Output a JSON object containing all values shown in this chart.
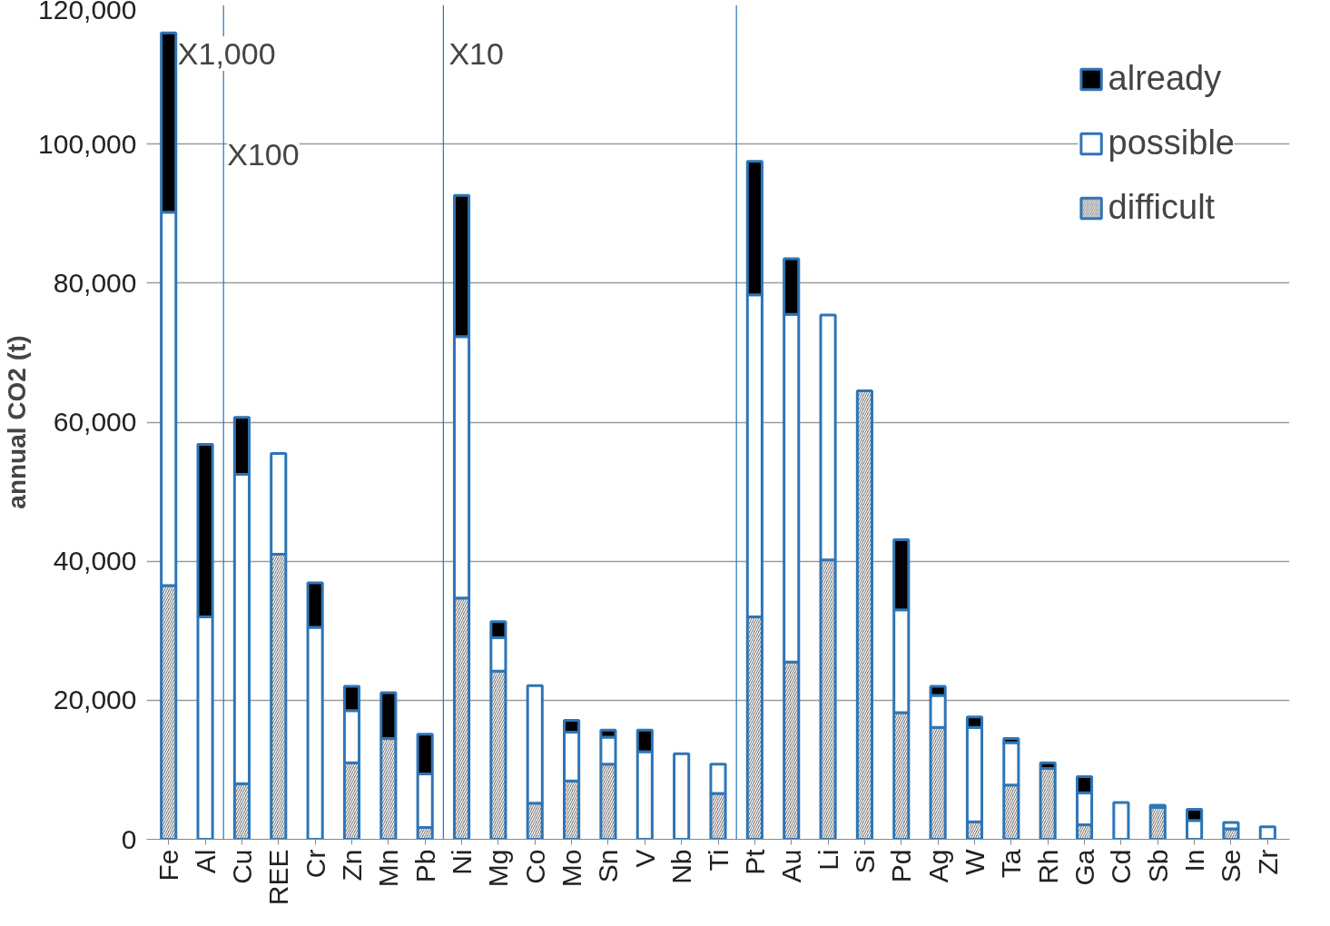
{
  "chart_data": {
    "type": "bar",
    "stacked": true,
    "ylabel": "annual CO2 (t)",
    "categories": [
      "Fe",
      "Al",
      "Cu",
      "REE",
      "Cr",
      "Zn",
      "Mn",
      "Pb",
      "Ni",
      "Mg",
      "Co",
      "Mo",
      "Sn",
      "V",
      "Nb",
      "Ti",
      "Pt",
      "Au",
      "Li",
      "Si",
      "Pd",
      "Ag",
      "W",
      "Ta",
      "Rh",
      "Ga",
      "Cd",
      "Sb",
      "In",
      "Se",
      "Zr"
    ],
    "series": [
      {
        "name": "difficult",
        "color": "#7f7f7f",
        "values": [
          36500,
          0,
          8000,
          41000,
          0,
          11000,
          14500,
          1700,
          34700,
          24200,
          5200,
          8400,
          10800,
          0,
          0,
          6600,
          32000,
          25500,
          40200,
          64500,
          18200,
          16100,
          2500,
          7800,
          10200,
          2100,
          0,
          4600,
          0,
          1500,
          0
        ]
      },
      {
        "name": "possible",
        "color": "#ffffff",
        "values": [
          53700,
          32000,
          44500,
          14500,
          30500,
          7500,
          0,
          7700,
          37600,
          4800,
          16900,
          7000,
          3900,
          12600,
          12300,
          4200,
          46300,
          50000,
          35200,
          0,
          14800,
          4600,
          13600,
          6100,
          0,
          4600,
          5300,
          300,
          2700,
          900,
          1800
        ]
      },
      {
        "name": "already",
        "color": "#000000",
        "values": [
          25800,
          24800,
          8200,
          0,
          6400,
          3500,
          6600,
          5700,
          20300,
          2300,
          0,
          1700,
          1000,
          3100,
          0,
          0,
          19200,
          8000,
          0,
          0,
          10100,
          1300,
          1500,
          600,
          800,
          2300,
          0,
          0,
          1600,
          0,
          0
        ]
      }
    ],
    "ylim": [
      0,
      120000
    ],
    "yticks": [
      {
        "value": 0,
        "label": "0"
      },
      {
        "value": 20000,
        "label": "20,000"
      },
      {
        "value": 40000,
        "label": "40,000"
      },
      {
        "value": 60000,
        "label": "60,000"
      },
      {
        "value": 80000,
        "label": "80,000"
      },
      {
        "value": 100000,
        "label": "100,000"
      },
      {
        "value": 120000,
        "label": "120,000"
      }
    ],
    "grid": "y",
    "legend": "top right",
    "annotations": [
      "X1,000",
      "X100",
      "X10"
    ]
  }
}
